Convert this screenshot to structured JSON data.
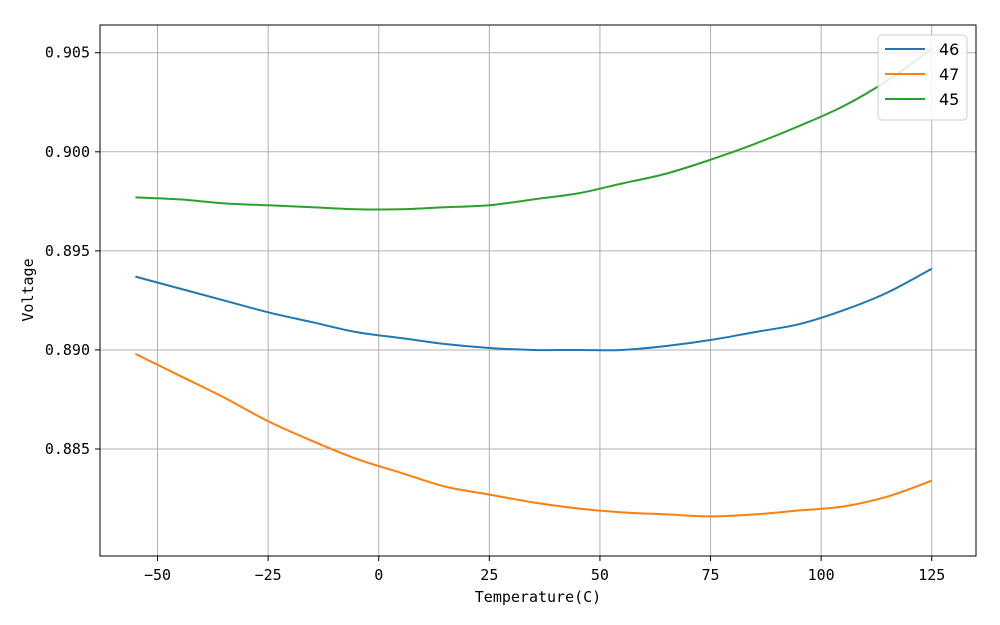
{
  "chart_data": {
    "type": "line",
    "title": "",
    "xlabel": "Temperature(C)",
    "ylabel": "Voltage",
    "xlim": [
      -63,
      135
    ],
    "ylim": [
      0.8796,
      0.9064
    ],
    "xticks": [
      -50,
      -25,
      0,
      25,
      50,
      75,
      100,
      125
    ],
    "xtick_labels": [
      "−50",
      "−25",
      "0",
      "25",
      "50",
      "75",
      "100",
      "125"
    ],
    "yticks": [
      0.885,
      0.89,
      0.895,
      0.9,
      0.905
    ],
    "ytick_labels": [
      "0.885",
      "0.890",
      "0.895",
      "0.900",
      "0.905"
    ],
    "grid": true,
    "legend_position": "top-right",
    "x": [
      -55,
      -45,
      -35,
      -25,
      -15,
      -5,
      5,
      15,
      25,
      35,
      45,
      55,
      65,
      75,
      85,
      95,
      105,
      115,
      125
    ],
    "series": [
      {
        "name": "46",
        "color": "#1f77b4",
        "values": [
          0.8937,
          0.8931,
          0.8925,
          0.8919,
          0.8914,
          0.8909,
          0.8906,
          0.8903,
          0.8901,
          0.89,
          0.89,
          0.89,
          0.8902,
          0.8905,
          0.8909,
          0.8913,
          0.892,
          0.8929,
          0.8941
        ]
      },
      {
        "name": "47",
        "color": "#ff7f0e",
        "values": [
          0.8898,
          0.8887,
          0.8876,
          0.8864,
          0.8854,
          0.8845,
          0.8838,
          0.8831,
          0.8827,
          0.8823,
          0.882,
          0.8818,
          0.8817,
          0.8816,
          0.8817,
          0.8819,
          0.8821,
          0.8826,
          0.8834
        ]
      },
      {
        "name": "45",
        "color": "#2ca02c",
        "values": [
          0.8977,
          0.8976,
          0.8974,
          0.8973,
          0.8972,
          0.8971,
          0.8971,
          0.8972,
          0.8973,
          0.8976,
          0.8979,
          0.8984,
          0.8989,
          0.8996,
          0.9004,
          0.9013,
          0.9023,
          0.9036,
          0.9052
        ]
      }
    ]
  }
}
